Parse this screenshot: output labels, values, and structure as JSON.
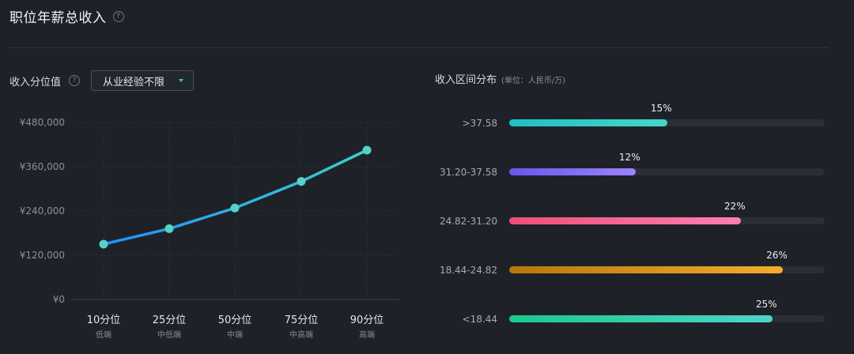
{
  "header": {
    "title": "职位年薪总收入"
  },
  "left": {
    "section_label": "收入分位值",
    "dropdown_value": "从业经验不限"
  },
  "right": {
    "section_label": "收入区间分布",
    "unit_label": "(单位：人民币/万)"
  },
  "chart_data": [
    {
      "type": "line",
      "categories": [
        "10分位",
        "25分位",
        "50分位",
        "75分位",
        "90分位"
      ],
      "category_sublabels": [
        "低端",
        "中低端",
        "中端",
        "中高端",
        "高端"
      ],
      "values": [
        150000,
        192000,
        248000,
        320000,
        405000
      ],
      "yticks": [
        "¥480,000",
        "¥360,000",
        "¥240,000",
        "¥120,000",
        "¥0"
      ],
      "ylim": [
        0,
        480000
      ],
      "grid": true,
      "colors": {
        "start": "#1f8fff",
        "end": "#3ecfc8",
        "point": "#55d2c6"
      }
    },
    {
      "type": "bar",
      "categories": [
        ">37.58",
        "31.20-37.58",
        "24.82-31.20",
        "18.44-24.82",
        "<18.44"
      ],
      "values": [
        15,
        12,
        22,
        26,
        25
      ],
      "labels": [
        "15%",
        "12%",
        "22%",
        "26%",
        "25%"
      ],
      "xlim": [
        0,
        30
      ],
      "colors": [
        [
          "#1fbfc4",
          "#45d6c8"
        ],
        [
          "#6a55ef",
          "#9a84ff"
        ],
        [
          "#ee4f76",
          "#ff7fb3"
        ],
        [
          "#b7770c",
          "#f2ad2a"
        ],
        [
          "#1bc98e",
          "#4fd3c9"
        ]
      ]
    }
  ]
}
